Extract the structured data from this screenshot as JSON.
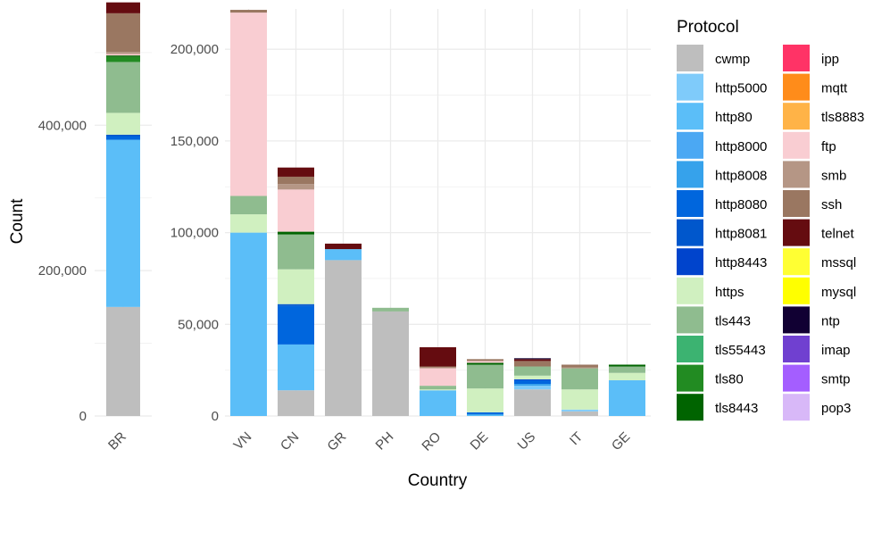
{
  "chart_data": {
    "type": "bar",
    "stacked": true,
    "xlabel": "Country",
    "ylabel": "Count",
    "legend_title": "Protocol",
    "legend_position": "right",
    "grid": true,
    "panels": [
      {
        "name": "left",
        "categories": [
          "BR"
        ],
        "ylim": [
          0,
          560000
        ],
        "yticks": [
          0,
          200000,
          400000
        ],
        "ytick_labels": [
          "0",
          "200,000",
          "400,000"
        ]
      },
      {
        "name": "right",
        "categories": [
          "VN",
          "CN",
          "GR",
          "PH",
          "RO",
          "DE",
          "US",
          "IT",
          "GE"
        ],
        "ylim": [
          0,
          222000
        ],
        "yticks": [
          0,
          50000,
          100000,
          150000,
          200000
        ],
        "ytick_labels": [
          "0",
          "50,000",
          "100,000",
          "150,000",
          "200,000"
        ]
      }
    ],
    "series": [
      {
        "name": "cwmp",
        "color": "#BEBEBE",
        "values": {
          "BR": 150000,
          "VN": 0,
          "CN": 14000,
          "GR": 85000,
          "PH": 57000,
          "RO": 0,
          "DE": 0,
          "US": 14500,
          "IT": 2500,
          "GE": 0
        }
      },
      {
        "name": "http5000",
        "color": "#7FCBFA",
        "values": {
          "BR": 0,
          "VN": 0,
          "CN": 0,
          "GR": 0,
          "PH": 0,
          "RO": 0,
          "DE": 0,
          "US": 2000,
          "IT": 1000,
          "GE": 0
        }
      },
      {
        "name": "http80",
        "color": "#5BBEF8",
        "values": {
          "BR": 230000,
          "VN": 100000,
          "CN": 25000,
          "GR": 6000,
          "PH": 0,
          "RO": 14000,
          "DE": 500,
          "US": 0,
          "IT": 0,
          "GE": 19500
        }
      },
      {
        "name": "http8000",
        "color": "#4BA8F3",
        "values": {
          "BR": 0,
          "VN": 0,
          "CN": 0,
          "GR": 0,
          "PH": 0,
          "RO": 0,
          "DE": 0,
          "US": 0,
          "IT": 0,
          "GE": 0
        }
      },
      {
        "name": "http8008",
        "color": "#36A2EB",
        "values": {
          "BR": 0,
          "VN": 0,
          "CN": 0,
          "GR": 0,
          "PH": 0,
          "RO": 0,
          "DE": 500,
          "US": 1000,
          "IT": 0,
          "GE": 0
        }
      },
      {
        "name": "http8080",
        "color": "#0066DD",
        "values": {
          "BR": 5000,
          "VN": 0,
          "CN": 21000,
          "GR": 0,
          "PH": 0,
          "RO": 0,
          "DE": 1000,
          "US": 2000,
          "IT": 0,
          "GE": 0
        }
      },
      {
        "name": "http8081",
        "color": "#0057CC",
        "values": {
          "BR": 2000,
          "VN": 0,
          "CN": 1000,
          "GR": 0,
          "PH": 0,
          "RO": 0,
          "DE": 0,
          "US": 0,
          "IT": 0,
          "GE": 0
        }
      },
      {
        "name": "http8443",
        "color": "#0044CC",
        "values": {
          "BR": 0,
          "VN": 0,
          "CN": 0,
          "GR": 0,
          "PH": 0,
          "RO": 0,
          "DE": 0,
          "US": 500,
          "IT": 0,
          "GE": 0
        }
      },
      {
        "name": "https",
        "color": "#D0F0C0",
        "values": {
          "BR": 30000,
          "VN": 10000,
          "CN": 19000,
          "GR": 0,
          "PH": 0,
          "RO": 500,
          "DE": 13000,
          "US": 2000,
          "IT": 11000,
          "GE": 4000
        }
      },
      {
        "name": "tls443",
        "color": "#8FBC8F",
        "values": {
          "BR": 70000,
          "VN": 10000,
          "CN": 19000,
          "GR": 0,
          "PH": 2000,
          "RO": 2000,
          "DE": 13000,
          "US": 5000,
          "IT": 11500,
          "GE": 3500
        }
      },
      {
        "name": "tls55443",
        "color": "#3CB371",
        "values": {
          "BR": 0,
          "VN": 0,
          "CN": 0,
          "GR": 0,
          "PH": 0,
          "RO": 0,
          "DE": 0,
          "US": 0,
          "IT": 0,
          "GE": 0
        }
      },
      {
        "name": "tls80",
        "color": "#228B22",
        "values": {
          "BR": 7000,
          "VN": 0,
          "CN": 0,
          "GR": 0,
          "PH": 0,
          "RO": 0,
          "DE": 0,
          "US": 0,
          "IT": 0,
          "GE": 0
        }
      },
      {
        "name": "tls8443",
        "color": "#006400",
        "values": {
          "BR": 2000,
          "VN": 0,
          "CN": 1500,
          "GR": 0,
          "PH": 0,
          "RO": 0,
          "DE": 1000,
          "US": 0,
          "IT": 0,
          "GE": 1000
        }
      },
      {
        "name": "ipp",
        "color": "#FF3366",
        "values": {
          "BR": 0,
          "VN": 0,
          "CN": 0,
          "GR": 0,
          "PH": 0,
          "RO": 0,
          "DE": 0,
          "US": 0,
          "IT": 0,
          "GE": 0
        }
      },
      {
        "name": "mqtt",
        "color": "#FF8C1A",
        "values": {
          "BR": 0,
          "VN": 0,
          "CN": 0,
          "GR": 0,
          "PH": 0,
          "RO": 0,
          "DE": 0,
          "US": 0,
          "IT": 0,
          "GE": 0
        }
      },
      {
        "name": "tls8883",
        "color": "#FFB347",
        "values": {
          "BR": 0,
          "VN": 0,
          "CN": 0,
          "GR": 0,
          "PH": 0,
          "RO": 0,
          "DE": 0,
          "US": 0,
          "IT": 0,
          "GE": 0
        }
      },
      {
        "name": "ftp",
        "color": "#F9CDD2",
        "values": {
          "BR": 2000,
          "VN": 100000,
          "CN": 23000,
          "GR": 0,
          "PH": 0,
          "RO": 9500,
          "DE": 1000,
          "US": 0,
          "IT": 0,
          "GE": 0
        }
      },
      {
        "name": "smb",
        "color": "#B59685",
        "values": {
          "BR": 3000,
          "VN": 0,
          "CN": 3000,
          "GR": 0,
          "PH": 0,
          "RO": 500,
          "DE": 0,
          "US": 0,
          "IT": 500,
          "GE": 0
        }
      },
      {
        "name": "ssh",
        "color": "#9A7761",
        "values": {
          "BR": 53000,
          "VN": 1500,
          "CN": 4000,
          "GR": 0,
          "PH": 0,
          "RO": 500,
          "DE": 1000,
          "US": 3000,
          "IT": 1500,
          "GE": 0
        }
      },
      {
        "name": "telnet",
        "color": "#650C10",
        "values": {
          "BR": 15000,
          "VN": 0,
          "CN": 5000,
          "GR": 3000,
          "PH": 0,
          "RO": 10500,
          "DE": 0,
          "US": 1000,
          "IT": 0,
          "GE": 0
        }
      },
      {
        "name": "mssql",
        "color": "#FFFF33",
        "values": {
          "BR": 0,
          "VN": 0,
          "CN": 0,
          "GR": 0,
          "PH": 0,
          "RO": 0,
          "DE": 0,
          "US": 0,
          "IT": 0,
          "GE": 0
        }
      },
      {
        "name": "mysql",
        "color": "#FFFF00",
        "values": {
          "BR": 0,
          "VN": 0,
          "CN": 0,
          "GR": 0,
          "PH": 0,
          "RO": 0,
          "DE": 0,
          "US": 0,
          "IT": 0,
          "GE": 0
        }
      },
      {
        "name": "ntp",
        "color": "#110033",
        "values": {
          "BR": 0,
          "VN": 0,
          "CN": 0,
          "GR": 0,
          "PH": 0,
          "RO": 0,
          "DE": 0,
          "US": 500,
          "IT": 0,
          "GE": 0
        }
      },
      {
        "name": "imap",
        "color": "#7040D0",
        "values": {
          "BR": 0,
          "VN": 0,
          "CN": 0,
          "GR": 0,
          "PH": 0,
          "RO": 0,
          "DE": 0,
          "US": 0,
          "IT": 0,
          "GE": 0
        }
      },
      {
        "name": "smtp",
        "color": "#A45EFF",
        "values": {
          "BR": 0,
          "VN": 0,
          "CN": 0,
          "GR": 0,
          "PH": 0,
          "RO": 0,
          "DE": 0,
          "US": 0,
          "IT": 0,
          "GE": 0
        }
      },
      {
        "name": "pop3",
        "color": "#D8B8F8",
        "values": {
          "BR": 0,
          "VN": 0,
          "CN": 0,
          "GR": 0,
          "PH": 0,
          "RO": 0,
          "DE": 0,
          "US": 0,
          "IT": 0,
          "GE": 0
        }
      }
    ]
  }
}
